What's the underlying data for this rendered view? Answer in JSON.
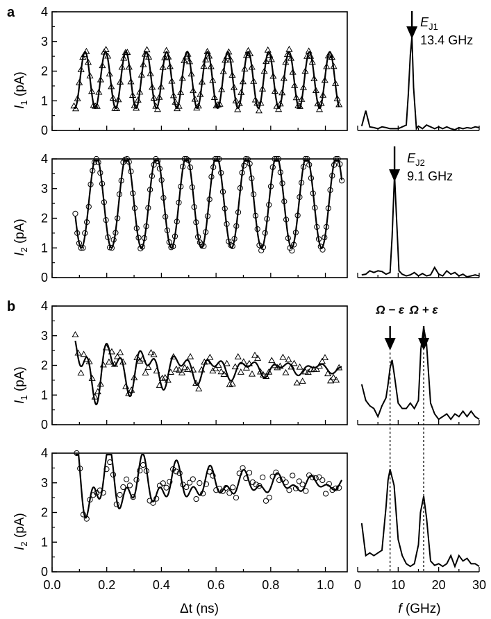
{
  "panel_labels": [
    "a",
    "b"
  ],
  "x_axis": {
    "left": {
      "label_main": "Δt",
      "label_unit": " (ns)",
      "ticks": [
        "0.0",
        "0.2",
        "0.4",
        "0.6",
        "0.8",
        "1.0"
      ]
    },
    "right": {
      "label_main": "f",
      "label_unit": " (GHz)",
      "ticks": [
        "0",
        "10",
        "20",
        "30"
      ]
    }
  },
  "y_tick_labels": [
    "0",
    "1",
    "2",
    "3",
    "4"
  ],
  "y_labels": [
    {
      "main": "I",
      "sub": "1",
      "unit": " (pA)"
    },
    {
      "main": "I",
      "sub": "2",
      "unit": " (pA)"
    },
    {
      "main": "I",
      "sub": "1",
      "unit": " (pA)"
    },
    {
      "main": "I",
      "sub": "2",
      "unit": " (pA)"
    }
  ],
  "annotations": {
    "a1": {
      "name_main": "E",
      "name_sub": "J1",
      "value": "13.4 GHz",
      "freq": 13.4
    },
    "a2": {
      "name_main": "E",
      "name_sub": "J2",
      "value": "9.1 GHz",
      "freq": 9.1
    },
    "b_minus": {
      "label": "Ω − ε",
      "freq": 8.0
    },
    "b_plus": {
      "label": "Ω + ε",
      "freq": 16.3
    }
  },
  "chart_data": [
    {
      "type": "line",
      "panel": "a",
      "ylabel": "I1 (pA)",
      "xlabel": "Δt (ns)",
      "xlim": [
        0,
        1.08
      ],
      "ylim": [
        0,
        4
      ],
      "marker": "triangle",
      "fit": {
        "offset": 1.7,
        "amplitude": 0.95,
        "freq_GHz": 13.4,
        "phase": 2.4,
        "decay_ns": 0,
        "x_start": 0.08,
        "x_end": 1.05
      },
      "points_x_range": [
        0.08,
        1.05
      ],
      "points_count": 150
    },
    {
      "type": "line",
      "panel": "a",
      "ylabel": "I2 (pA)",
      "xlabel": "Δt (ns)",
      "xlim": [
        0,
        1.08
      ],
      "ylim": [
        0,
        4
      ],
      "marker": "circle",
      "fit": {
        "offset": 2.55,
        "amplitude": 1.55,
        "freq_GHz": 9.1,
        "phase": 3.3,
        "decay_ns": 0,
        "x_start": 0.085,
        "x_end": 1.06
      },
      "points_x_range": [
        0.085,
        1.06
      ],
      "points_count": 140
    },
    {
      "type": "line",
      "panel": "b",
      "ylabel": "I1 (pA)",
      "xlabel": "Δt (ns)",
      "xlim": [
        0,
        1.08
      ],
      "ylim": [
        0,
        4
      ],
      "marker": "triangle",
      "fit_components": [
        {
          "amplitude": 0.85,
          "freq_GHz": 8.0,
          "phase": 1.6
        },
        {
          "amplitude": 0.65,
          "freq_GHz": 16.3,
          "phase": 5.2
        }
      ],
      "fit_offset": 1.9,
      "fit_decay_ns": 0.45,
      "fit_range": [
        0.085,
        1.06
      ],
      "points_x_range": [
        0.085,
        1.05
      ],
      "points_count": 95
    },
    {
      "type": "line",
      "panel": "b",
      "ylabel": "I2 (pA)",
      "xlabel": "Δt (ns)",
      "xlim": [
        0,
        1.08
      ],
      "ylim": [
        0,
        4
      ],
      "marker": "circle",
      "fit_components": [
        {
          "amplitude": 0.95,
          "freq_GHz": 8.0,
          "phase": 2.3
        },
        {
          "amplitude": 0.75,
          "freq_GHz": 16.3,
          "phase": 3.6
        }
      ],
      "fit_offset": 2.95,
      "fit_decay_ns": 0.5,
      "fit_range": [
        0.085,
        1.06
      ],
      "points_x_range": [
        0.09,
        1.05
      ],
      "points_count": 80
    },
    {
      "type": "line",
      "panel": "a",
      "xlabel": "f (GHz)",
      "xlim": [
        0,
        30
      ],
      "x": [
        1,
        2,
        3,
        4,
        5,
        6,
        7,
        8,
        9,
        10,
        11,
        12,
        12.5,
        13,
        13.4,
        13.8,
        14.5,
        15,
        16,
        17,
        18,
        19,
        20,
        21,
        22,
        23,
        24,
        25,
        26,
        27,
        28,
        29,
        30
      ],
      "y": [
        0.12,
        0.55,
        0.1,
        0.08,
        0.05,
        0.1,
        0.08,
        0.05,
        0.05,
        0.05,
        0.1,
        0.15,
        1.0,
        2.1,
        2.6,
        1.2,
        0.05,
        0.12,
        0.05,
        0.15,
        0.1,
        0.05,
        0.1,
        0.05,
        0.1,
        0.05,
        0.02,
        0.08,
        0.05,
        0.08,
        0.06,
        0.1,
        0.08
      ],
      "ymax": 3.0
    },
    {
      "type": "line",
      "panel": "a",
      "xlabel": "f (GHz)",
      "xlim": [
        0,
        30
      ],
      "x": [
        1,
        2,
        3,
        4,
        5,
        6,
        7,
        8,
        8.5,
        9.1,
        9.7,
        10.2,
        11,
        12,
        13,
        14,
        15,
        16,
        17,
        18,
        19,
        20,
        21,
        22,
        23,
        24,
        25,
        26,
        27,
        28,
        29,
        30
      ],
      "y": [
        0.08,
        0.1,
        0.2,
        0.15,
        0.2,
        0.18,
        0.1,
        0.15,
        1.2,
        3.05,
        1.5,
        0.2,
        0.1,
        0.05,
        0.08,
        0.15,
        0.05,
        0.12,
        0.05,
        0.08,
        0.3,
        0.1,
        0.05,
        0.2,
        0.1,
        0.15,
        0.05,
        0.1,
        0.02,
        0.05,
        0.08,
        0.05
      ],
      "ymax": 3.2
    },
    {
      "type": "line",
      "panel": "b",
      "xlabel": "f (GHz)",
      "xlim": [
        0,
        30
      ],
      "x": [
        1,
        2,
        3,
        4,
        5,
        6,
        7,
        7.5,
        8,
        8.5,
        9,
        10,
        11,
        12,
        13,
        14,
        15,
        15.6,
        16.3,
        17,
        17.5,
        18,
        19,
        20,
        21,
        22,
        23,
        24,
        25,
        26,
        27,
        28,
        29,
        30
      ],
      "y": [
        0.75,
        0.45,
        0.35,
        0.3,
        0.15,
        0.35,
        0.5,
        0.75,
        1.05,
        1.2,
        0.95,
        0.4,
        0.3,
        0.3,
        0.4,
        0.3,
        0.45,
        1.4,
        1.8,
        1.5,
        0.95,
        0.4,
        0.2,
        0.1,
        0.15,
        0.2,
        0.1,
        0.2,
        0.15,
        0.25,
        0.15,
        0.25,
        0.15,
        0.1
      ],
      "ymax": 2.0
    },
    {
      "type": "line",
      "panel": "b",
      "xlabel": "f (GHz)",
      "xlim": [
        0,
        30
      ],
      "x": [
        1,
        2,
        3,
        4,
        5,
        6,
        7,
        7.5,
        8,
        9,
        10,
        11,
        12,
        13,
        14,
        15,
        15.5,
        16.3,
        17,
        18,
        19,
        20,
        21,
        22,
        23,
        24,
        25,
        26,
        27,
        28,
        29,
        30
      ],
      "y": [
        0.9,
        0.3,
        0.35,
        0.3,
        0.35,
        0.4,
        1.2,
        1.7,
        1.9,
        1.6,
        0.6,
        0.3,
        0.15,
        0.1,
        0.15,
        0.5,
        1.1,
        1.4,
        1.0,
        0.2,
        0.12,
        0.15,
        0.1,
        0.15,
        0.3,
        0.1,
        0.3,
        0.2,
        0.25,
        0.15,
        0.15,
        0.1
      ],
      "ymax": 2.0
    }
  ]
}
